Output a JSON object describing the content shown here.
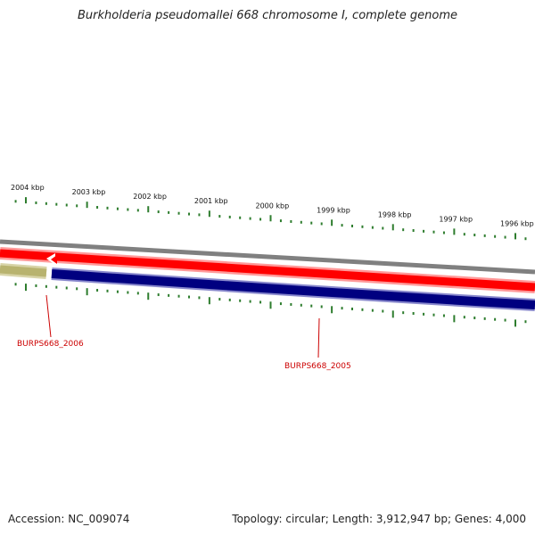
{
  "title": "Burkholderia pseudomallei 668 chromosome I, complete genome",
  "footer": {
    "accession": "Accession: NC_009074",
    "summary": "Topology: circular; Length: 3,912,947 bp; Genes: 4,000"
  },
  "scale": {
    "unit": "kbp",
    "labels": [
      {
        "kbp": 2004,
        "text": "2004 kbp"
      },
      {
        "kbp": 2003,
        "text": "2003 kbp"
      },
      {
        "kbp": 2002,
        "text": "2002 kbp"
      },
      {
        "kbp": 2001,
        "text": "2001 kbp"
      },
      {
        "kbp": 2000,
        "text": "2000 kbp"
      },
      {
        "kbp": 1999,
        "text": "1999 kbp"
      },
      {
        "kbp": 1998,
        "text": "1998 kbp"
      },
      {
        "kbp": 1997,
        "text": "1997 kbp"
      },
      {
        "kbp": 1996,
        "text": "1996 kbp"
      }
    ]
  },
  "genes": [
    {
      "id": "BURPS668_2006",
      "label": "BURPS668_2006",
      "strand": "forward",
      "color": "#b8b36f"
    },
    {
      "id": "BURPS668_2005",
      "label": "BURPS668_2005",
      "strand": "reverse",
      "color": "#000080"
    }
  ],
  "colors": {
    "backbone": "#808080",
    "forward_track": "#ff0000",
    "reverse_track": "#000080",
    "ticks": "#2e7d2e",
    "gene_label": "#cc0000"
  }
}
